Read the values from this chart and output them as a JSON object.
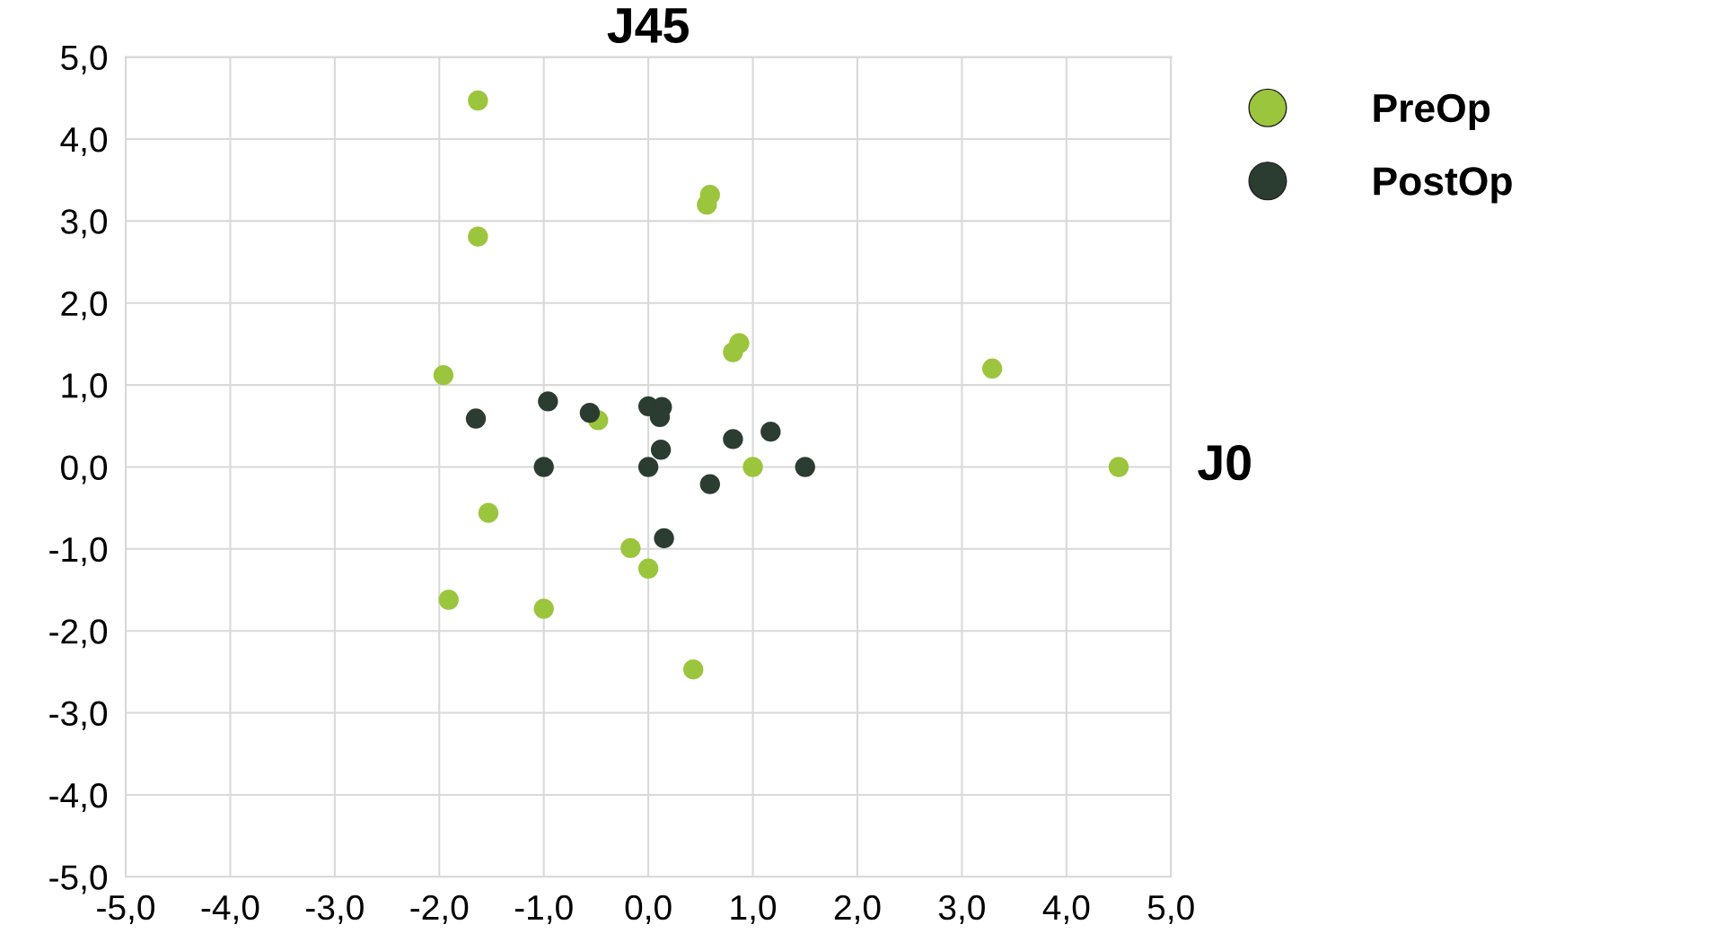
{
  "chart_data": {
    "type": "scatter",
    "xlabel": "J0",
    "ylabel": "J45",
    "xlim": [
      -5,
      5
    ],
    "ylim": [
      -5,
      5
    ],
    "xticks": [
      {
        "value": -5,
        "label": "-5,0"
      },
      {
        "value": -4,
        "label": "-4,0"
      },
      {
        "value": -3,
        "label": "-3,0"
      },
      {
        "value": -2,
        "label": "-2,0"
      },
      {
        "value": -1,
        "label": "-1,0"
      },
      {
        "value": 0,
        "label": "0,0"
      },
      {
        "value": 1,
        "label": "1,0"
      },
      {
        "value": 2,
        "label": "2,0"
      },
      {
        "value": 3,
        "label": "3,0"
      },
      {
        "value": 4,
        "label": "4,0"
      },
      {
        "value": 5,
        "label": "5,0"
      }
    ],
    "yticks": [
      {
        "value": -5,
        "label": "-5,0"
      },
      {
        "value": -4,
        "label": "-4,0"
      },
      {
        "value": -3,
        "label": "-3,0"
      },
      {
        "value": -2,
        "label": "-2,0"
      },
      {
        "value": -1,
        "label": "-1,0"
      },
      {
        "value": 0,
        "label": "0,0"
      },
      {
        "value": 1,
        "label": "1,0"
      },
      {
        "value": 2,
        "label": "2,0"
      },
      {
        "value": 3,
        "label": "3,0"
      },
      {
        "value": 4,
        "label": "4,0"
      },
      {
        "value": 5,
        "label": "5,0"
      }
    ],
    "grid": true,
    "legend": "top right",
    "marker": "circle",
    "series": [
      {
        "name": "PreOp",
        "color": "#9bc53d",
        "x": [
          -1.63,
          0.59,
          0.56,
          -1.63,
          0.87,
          0.81,
          -1.96,
          3.29,
          -0.48,
          1.0,
          4.5,
          -1.53,
          -0.17,
          0.0,
          -1.91,
          -1.0,
          0.43
        ],
        "values": [
          4.47,
          3.32,
          3.2,
          2.81,
          1.51,
          1.4,
          1.12,
          1.2,
          0.57,
          0.0,
          0.0,
          -0.56,
          -0.99,
          -1.24,
          -1.62,
          -1.73,
          -2.47
        ]
      },
      {
        "name": "PostOp",
        "color": "#2b3d31",
        "x": [
          -0.96,
          -1.65,
          -0.56,
          0.0,
          0.13,
          0.11,
          0.12,
          0.81,
          1.17,
          1.5,
          -1.0,
          0.0,
          0.59,
          0.15
        ],
        "values": [
          0.8,
          0.59,
          0.66,
          0.74,
          0.73,
          0.61,
          0.21,
          0.34,
          0.43,
          0.0,
          0.0,
          0.0,
          -0.21,
          -0.87
        ]
      }
    ]
  }
}
